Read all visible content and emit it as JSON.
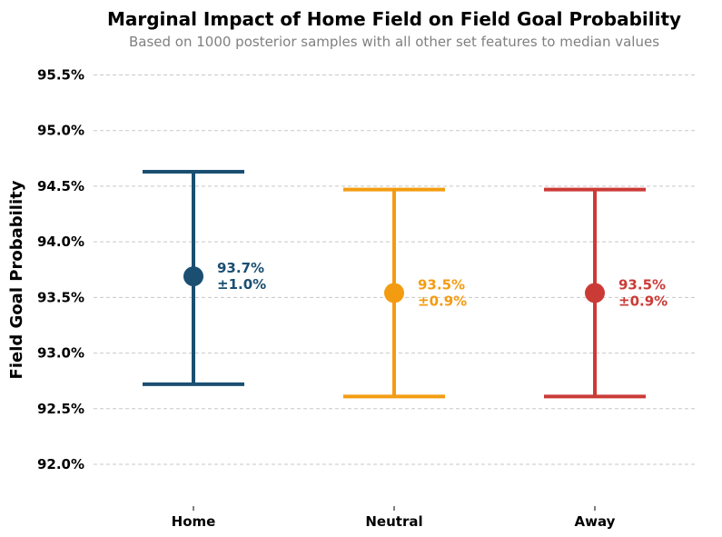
{
  "chart_data": {
    "type": "errorbar",
    "title": "Marginal Impact of Home Field on Field Goal Probability",
    "subtitle": "Based on 1000 posterior samples with all other set features to median values",
    "ylabel": "Field Goal Probability",
    "xlabel": "",
    "ylim": [
      91.6,
      95.7
    ],
    "yticks": [
      "92.0%",
      "92.5%",
      "93.0%",
      "93.5%",
      "94.0%",
      "94.5%",
      "95.0%",
      "95.5%"
    ],
    "ytick_values": [
      92.0,
      92.5,
      93.0,
      93.5,
      94.0,
      94.5,
      95.0,
      95.5
    ],
    "grid": "horizontal dashed",
    "categories": [
      "Home",
      "Neutral",
      "Away"
    ],
    "values": [
      93.69,
      93.54,
      93.54
    ],
    "lower": [
      92.72,
      92.61,
      92.61
    ],
    "upper": [
      94.63,
      94.47,
      94.47
    ],
    "labels": [
      {
        "value": "93.7%",
        "err": "±1.0%"
      },
      {
        "value": "93.5%",
        "err": "±0.9%"
      },
      {
        "value": "93.5%",
        "err": "±0.9%"
      }
    ],
    "colors": [
      "#1b4f72",
      "#f39c12",
      "#cb3b36"
    ]
  }
}
